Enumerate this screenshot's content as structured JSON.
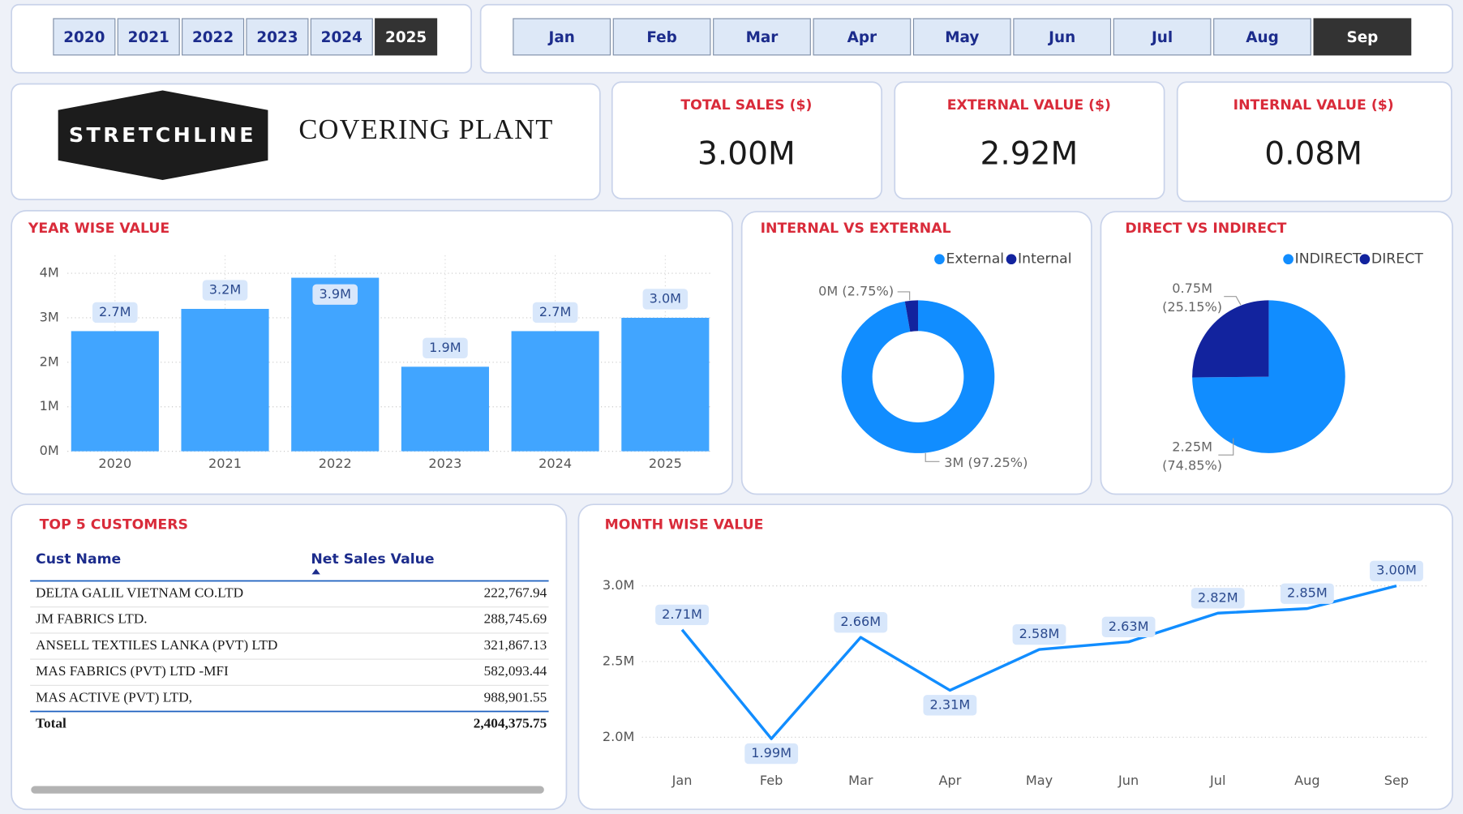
{
  "year_filter": {
    "options": [
      "2020",
      "2021",
      "2022",
      "2023",
      "2024",
      "2025"
    ],
    "selected_index": 5
  },
  "month_filter": {
    "options": [
      "Jan",
      "Feb",
      "Mar",
      "Apr",
      "May",
      "Jun",
      "Jul",
      "Aug",
      "Sep"
    ],
    "selected_index": 8
  },
  "header": {
    "logo": "STRETCHLINE",
    "title": "COVERING PLANT"
  },
  "kpis": [
    {
      "label": "TOTAL SALES ($)",
      "value": "3.00M"
    },
    {
      "label": "EXTERNAL VALUE ($)",
      "value": "2.92M"
    },
    {
      "label": "INTERNAL VALUE ($)",
      "value": "0.08M"
    }
  ],
  "chart_data": [
    {
      "type": "bar",
      "title": "YEAR WISE VALUE",
      "categories": [
        "2020",
        "2021",
        "2022",
        "2023",
        "2024",
        "2025"
      ],
      "values": [
        2.7,
        3.2,
        3.9,
        1.9,
        2.7,
        3.0
      ],
      "value_labels": [
        "2.7M",
        "3.2M",
        "3.9M",
        "1.9M",
        "2.7M",
        "3.0M"
      ],
      "color": "#41a5ff",
      "ylim": [
        0,
        4.4
      ],
      "yticks": [
        {
          "value": 0,
          "label": "0M"
        },
        {
          "value": 1,
          "label": "1M"
        },
        {
          "value": 2,
          "label": "2M"
        },
        {
          "value": 3,
          "label": "3M"
        },
        {
          "value": 4,
          "label": "4M"
        }
      ],
      "grid": true
    },
    {
      "type": "donut",
      "title": "INTERNAL VS EXTERNAL",
      "categories": [
        "External",
        "Internal"
      ],
      "values": [
        97.25,
        2.75
      ],
      "value_labels": [
        "3M (97.25%)",
        "0M (2.75%)"
      ],
      "colors": [
        "#118dff",
        "#12239e"
      ]
    },
    {
      "type": "pie",
      "title": "DIRECT VS INDIRECT",
      "categories": [
        "INDIRECT",
        "DIRECT"
      ],
      "values": [
        74.85,
        25.15
      ],
      "value_labels": [
        [
          "2.25M",
          "(74.85%)"
        ],
        [
          "0.75M",
          "(25.15%)"
        ]
      ],
      "colors": [
        "#118dff",
        "#12239e"
      ]
    },
    {
      "type": "line",
      "title": "MONTH WISE VALUE",
      "categories": [
        "Jan",
        "Feb",
        "Mar",
        "Apr",
        "May",
        "Jun",
        "Jul",
        "Aug",
        "Sep"
      ],
      "values": [
        2.71,
        1.99,
        2.66,
        2.31,
        2.58,
        2.63,
        2.82,
        2.85,
        3.0
      ],
      "value_labels": [
        "2.71M",
        "1.99M",
        "2.66M",
        "2.31M",
        "2.58M",
        "2.63M",
        "2.82M",
        "2.85M",
        "3.00M"
      ],
      "color": "#118dff",
      "ylim": [
        1.85,
        3.15
      ],
      "yticks": [
        {
          "value": 2.0,
          "label": "2.0M"
        },
        {
          "value": 2.5,
          "label": "2.5M"
        },
        {
          "value": 3.0,
          "label": "3.0M"
        }
      ],
      "grid": true
    }
  ],
  "table": {
    "title": "TOP 5 CUSTOMERS",
    "columns": [
      "Cust Name",
      "Net Sales Value"
    ],
    "rows": [
      [
        "DELTA GALIL VIETNAM CO.LTD",
        "222,767.94"
      ],
      [
        "JM FABRICS LTD.",
        "288,745.69"
      ],
      [
        "ANSELL TEXTILES LANKA (PVT) LTD",
        "321,867.13"
      ],
      [
        "MAS FABRICS (PVT) LTD -MFI",
        "582,093.44"
      ],
      [
        "MAS ACTIVE (PVT) LTD,",
        "988,901.55"
      ]
    ],
    "total": [
      "Total",
      "2,404,375.75"
    ]
  }
}
